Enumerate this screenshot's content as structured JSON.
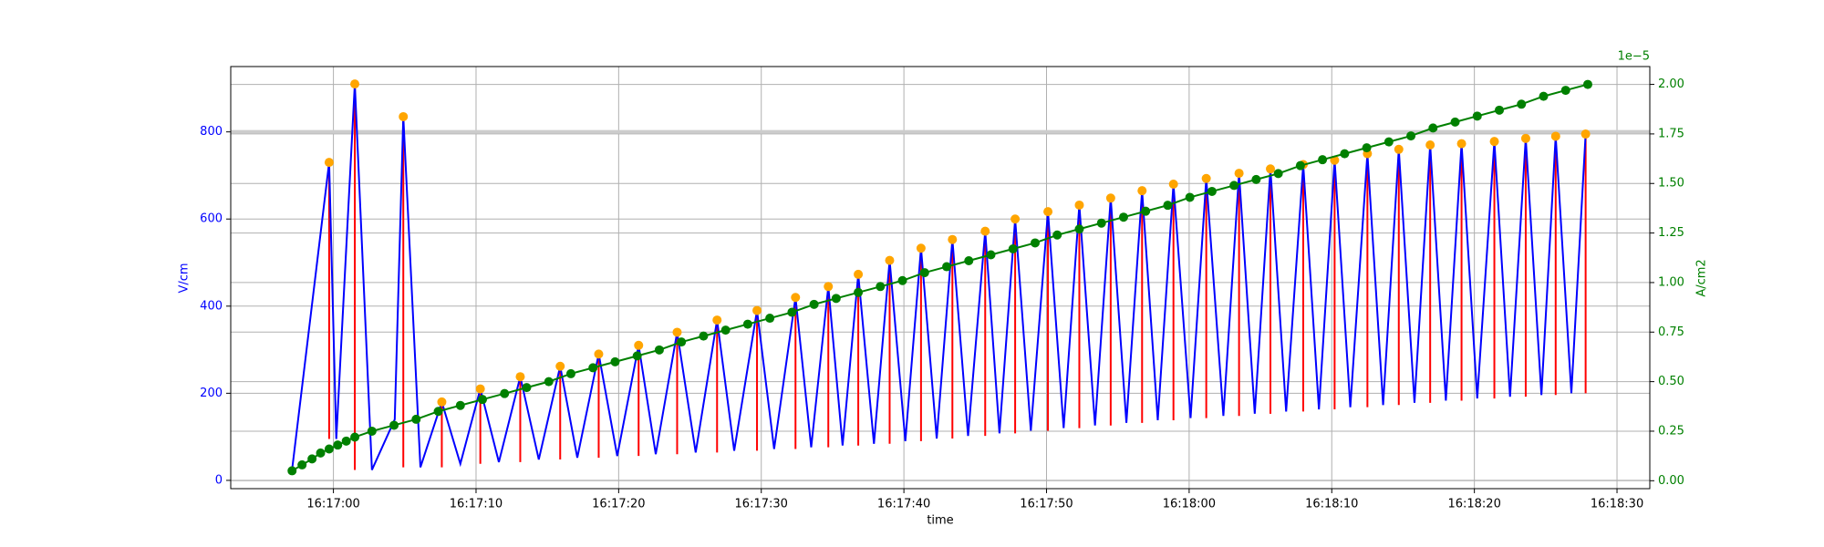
{
  "chart_data": {
    "type": "line",
    "xlabel": "time",
    "ylabel": "V/cm",
    "y2label": "A/cm2",
    "y2_offset_label": "1e−5",
    "xlim": [
      "16:16:52.8",
      "16:18:32.3"
    ],
    "xticks": [
      "16:17:00",
      "16:17:10",
      "16:17:20",
      "16:17:30",
      "16:17:40",
      "16:17:50",
      "16:18:00",
      "16:18:10",
      "16:18:20",
      "16:18:30"
    ],
    "ylim": [
      -19,
      950
    ],
    "yticks": [
      0,
      200,
      400,
      600,
      800
    ],
    "y2lim": [
      -0.04,
      2.09
    ],
    "y2ticks": [
      {
        "value": 0,
        "label": "0.00"
      },
      {
        "value": 0.25,
        "label": "0.25"
      },
      {
        "value": 0.5,
        "label": "0.50"
      },
      {
        "value": 0.75,
        "label": "0.75"
      },
      {
        "value": 1,
        "label": "1.00"
      },
      {
        "value": 1.25,
        "label": "1.25"
      },
      {
        "value": 1.5,
        "label": "1.50"
      },
      {
        "value": 1.75,
        "label": "1.75"
      },
      {
        "value": 2,
        "label": "2.00"
      }
    ],
    "ycolor": "blue",
    "y2color": "green",
    "grid": true,
    "reference_line": {
      "value": 800,
      "color": "#cccccc"
    },
    "series": [
      {
        "type": "line",
        "color": "blue",
        "x": [
          "16:16:57.1",
          "16:16:59.7",
          "16:17:00.2",
          "16:17:01.5",
          "16:17:02.7",
          "16:17:04.3",
          "16:17:04.9",
          "16:17:06.1",
          "16:17:07.6",
          "16:17:08.9",
          "16:17:10.3",
          "16:17:11.6",
          "16:17:13.1",
          "16:17:14.4",
          "16:17:15.9",
          "16:17:17.1",
          "16:17:18.6",
          "16:17:19.9",
          "16:17:21.4",
          "16:17:22.6",
          "16:17:24.1",
          "16:17:25.4",
          "16:17:26.9",
          "16:17:28.1",
          "16:17:29.7",
          "16:17:30.9",
          "16:17:32.4",
          "16:17:33.5",
          "16:17:34.7",
          "16:17:35.7",
          "16:17:36.8",
          "16:17:37.9",
          "16:17:39.0",
          "16:17:40.1",
          "16:17:41.2",
          "16:17:42.3",
          "16:17:43.4",
          "16:17:44.5",
          "16:17:45.7",
          "16:17:46.7",
          "16:17:47.8",
          "16:17:48.9",
          "16:17:50.1",
          "16:17:51.2",
          "16:17:52.3",
          "16:17:53.4",
          "16:17:54.5",
          "16:17:55.6",
          "16:17:56.7",
          "16:17:57.8",
          "16:17:58.9",
          "16:18:00.1",
          "16:18:01.2",
          "16:18:02.4",
          "16:18:03.5",
          "16:18:04.6",
          "16:18:05.7",
          "16:18:06.8",
          "16:18:08.0",
          "16:18:09.1",
          "16:18:10.2",
          "16:18:11.3",
          "16:18:12.5",
          "16:18:13.6",
          "16:18:14.7",
          "16:18:15.8",
          "16:18:16.9",
          "16:18:18.0",
          "16:18:19.1",
          "16:18:20.2",
          "16:18:21.4",
          "16:18:22.5",
          "16:18:23.6",
          "16:18:24.7",
          "16:18:25.7",
          "16:18:26.8",
          "16:18:27.8"
        ],
        "values": [
          24,
          730,
          95,
          910,
          24,
          140,
          835,
          30,
          180,
          38,
          210,
          42,
          238,
          48,
          262,
          52,
          290,
          56,
          310,
          60,
          340,
          64,
          368,
          68,
          390,
          72,
          420,
          76,
          445,
          80,
          473,
          84,
          505,
          90,
          533,
          96,
          553,
          102,
          572,
          108,
          600,
          114,
          617,
          120,
          632,
          126,
          648,
          132,
          665,
          138,
          680,
          143,
          693,
          148,
          705,
          153,
          715,
          158,
          725,
          163,
          735,
          168,
          750,
          173,
          760,
          178,
          770,
          183,
          773,
          188,
          778,
          192,
          785,
          196,
          790,
          200,
          795
        ]
      },
      {
        "type": "vlines",
        "color": "red",
        "x": [
          "16:16:59.7",
          "16:17:01.5",
          "16:17:04.9",
          "16:17:07.6",
          "16:17:10.3",
          "16:17:13.1",
          "16:17:15.9",
          "16:17:18.6",
          "16:17:21.4",
          "16:17:24.1",
          "16:17:26.9",
          "16:17:29.7",
          "16:17:32.4",
          "16:17:34.7",
          "16:17:36.8",
          "16:17:39.0",
          "16:17:41.2",
          "16:17:43.4",
          "16:17:45.7",
          "16:17:47.8",
          "16:17:50.1",
          "16:17:52.3",
          "16:17:54.5",
          "16:17:56.7",
          "16:17:58.9",
          "16:18:01.2",
          "16:18:03.5",
          "16:18:05.7",
          "16:18:08.0",
          "16:18:10.2",
          "16:18:12.5",
          "16:18:14.7",
          "16:18:16.9",
          "16:18:19.1",
          "16:18:21.4",
          "16:18:23.6",
          "16:18:25.7",
          "16:18:27.8"
        ],
        "ymin": [
          95,
          24,
          30,
          30,
          38,
          42,
          48,
          52,
          56,
          60,
          64,
          68,
          72,
          76,
          80,
          84,
          90,
          96,
          102,
          108,
          114,
          120,
          126,
          132,
          138,
          143,
          148,
          153,
          158,
          163,
          168,
          173,
          178,
          183,
          188,
          192,
          196,
          200
        ],
        "values": [
          730,
          910,
          835,
          180,
          210,
          238,
          262,
          290,
          310,
          340,
          368,
          390,
          420,
          445,
          473,
          505,
          533,
          553,
          572,
          600,
          617,
          632,
          648,
          665,
          680,
          693,
          705,
          715,
          725,
          735,
          750,
          760,
          770,
          773,
          778,
          785,
          790,
          795
        ]
      },
      {
        "type": "scatter",
        "color": "orange",
        "x": [
          "16:16:59.7",
          "16:17:01.5",
          "16:17:04.9",
          "16:17:07.6",
          "16:17:10.3",
          "16:17:13.1",
          "16:17:15.9",
          "16:17:18.6",
          "16:17:21.4",
          "16:17:24.1",
          "16:17:26.9",
          "16:17:29.7",
          "16:17:32.4",
          "16:17:34.7",
          "16:17:36.8",
          "16:17:39.0",
          "16:17:41.2",
          "16:17:43.4",
          "16:17:45.7",
          "16:17:47.8",
          "16:17:50.1",
          "16:17:52.3",
          "16:17:54.5",
          "16:17:56.7",
          "16:17:58.9",
          "16:18:01.2",
          "16:18:03.5",
          "16:18:05.7",
          "16:18:08.0",
          "16:18:10.2",
          "16:18:12.5",
          "16:18:14.7",
          "16:18:16.9",
          "16:18:19.1",
          "16:18:21.4",
          "16:18:23.6",
          "16:18:25.7",
          "16:18:27.8"
        ],
        "values": [
          730,
          910,
          835,
          180,
          210,
          238,
          262,
          290,
          310,
          340,
          368,
          390,
          420,
          445,
          473,
          505,
          533,
          553,
          572,
          600,
          617,
          632,
          648,
          665,
          680,
          693,
          705,
          715,
          725,
          735,
          750,
          760,
          770,
          773,
          778,
          785,
          790,
          795
        ]
      },
      {
        "type": "line",
        "axis": "y2",
        "color": "green",
        "markers": true,
        "x": [
          "16:16:57.1",
          "16:16:57.8",
          "16:16:58.5",
          "16:16:59.1",
          "16:16:59.7",
          "16:17:00.3",
          "16:17:00.9",
          "16:17:01.5",
          "16:17:02.70",
          "16:17:04.25",
          "16:17:05.80",
          "16:17:07.35",
          "16:17:08.90",
          "16:17:10.45",
          "16:17:12.00",
          "16:17:13.55",
          "16:17:15.10",
          "16:17:16.65",
          "16:17:18.20",
          "16:17:19.75",
          "16:17:21.30",
          "16:17:22.85",
          "16:17:24.40",
          "16:17:25.95",
          "16:17:27.50",
          "16:17:29.05",
          "16:17:30.60",
          "16:17:32.15",
          "16:17:33.70",
          "16:17:35.25",
          "16:17:36.80",
          "16:17:38.35",
          "16:17:39.90",
          "16:17:41.45",
          "16:17:43.00",
          "16:17:44.55",
          "16:17:46.10",
          "16:17:47.65",
          "16:17:49.20",
          "16:17:50.75",
          "16:17:52.30",
          "16:17:53.85",
          "16:17:55.40",
          "16:17:56.95",
          "16:17:58.50",
          "16:18:00.05",
          "16:18:01.60",
          "16:18:03.15",
          "16:18:04.70",
          "16:18:06.25",
          "16:18:07.80",
          "16:18:09.35",
          "16:18:10.90",
          "16:18:12.45",
          "16:18:14.00",
          "16:18:15.55",
          "16:18:17.10",
          "16:18:18.65",
          "16:18:20.20",
          "16:18:21.75",
          "16:18:23.30",
          "16:18:24.85",
          "16:18:26.40",
          "16:18:27.95"
        ],
        "values": [
          0.05,
          0.08,
          0.11,
          0.14,
          0.16,
          0.18,
          0.2,
          0.22,
          0.25,
          0.28,
          0.31,
          0.35,
          0.38,
          0.41,
          0.44,
          0.47,
          0.5,
          0.54,
          0.57,
          0.6,
          0.63,
          0.66,
          0.7,
          0.73,
          0.76,
          0.79,
          0.82,
          0.85,
          0.89,
          0.92,
          0.95,
          0.98,
          1.01,
          1.05,
          1.08,
          1.11,
          1.14,
          1.17,
          1.2,
          1.24,
          1.27,
          1.3,
          1.33,
          1.36,
          1.39,
          1.43,
          1.46,
          1.49,
          1.52,
          1.55,
          1.59,
          1.62,
          1.65,
          1.68,
          1.71,
          1.74,
          1.78,
          1.81,
          1.84,
          1.87,
          1.9,
          1.94,
          1.97,
          2.0
        ]
      }
    ]
  }
}
